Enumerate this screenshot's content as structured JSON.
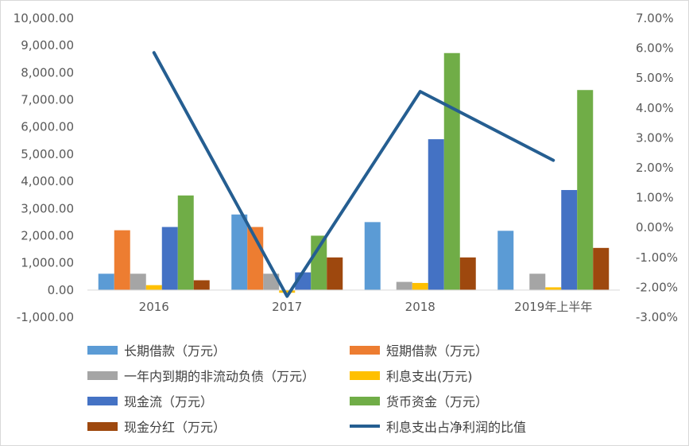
{
  "chart_data": {
    "type": "bar",
    "categories": [
      "2016",
      "2017",
      "2018",
      "2019年上半年"
    ],
    "series": [
      {
        "name": "长期借款（万元）",
        "color": "#5b9bd5",
        "values": [
          600,
          2780,
          2500,
          2180
        ]
      },
      {
        "name": "短期借款（万元）",
        "color": "#ed7d31",
        "values": [
          2200,
          2320,
          0,
          0
        ]
      },
      {
        "name": "一年内到期的非流动负债（万元）",
        "color": "#a5a5a5",
        "values": [
          600,
          600,
          300,
          600
        ]
      },
      {
        "name": "利息支出(万元)",
        "color": "#ffc000",
        "values": [
          180,
          -100,
          260,
          100
        ]
      },
      {
        "name": "现金流（万元）",
        "color": "#4472c4",
        "values": [
          2320,
          650,
          5550,
          3680
        ]
      },
      {
        "name": "货币资金（万元）",
        "color": "#70ad47",
        "values": [
          3480,
          2000,
          8720,
          7360
        ]
      },
      {
        "name": "现金分红（万元）",
        "color": "#9e480e",
        "values": [
          360,
          1200,
          1200,
          1550
        ]
      }
    ],
    "line_series": {
      "name": "利息支出占净利润的比值",
      "color": "#255e91",
      "axis": "right",
      "values": [
        5.85,
        -2.3,
        4.55,
        2.25
      ]
    },
    "left_axis": {
      "min": -1000,
      "max": 10000,
      "step": 1000,
      "ticks": [
        "-1,000.00",
        "0.00",
        "1,000.00",
        "2,000.00",
        "3,000.00",
        "4,000.00",
        "5,000.00",
        "6,000.00",
        "7,000.00",
        "8,000.00",
        "9,000.00",
        "10,000.00"
      ]
    },
    "right_axis": {
      "min": -3,
      "max": 7,
      "step": 1,
      "unit": "%",
      "ticks": [
        "-3.00%",
        "-2.00%",
        "-1.00%",
        "0.00%",
        "1.00%",
        "2.00%",
        "3.00%",
        "4.00%",
        "5.00%",
        "6.00%",
        "7.00%"
      ]
    },
    "legend_position": "bottom",
    "grid": false
  }
}
